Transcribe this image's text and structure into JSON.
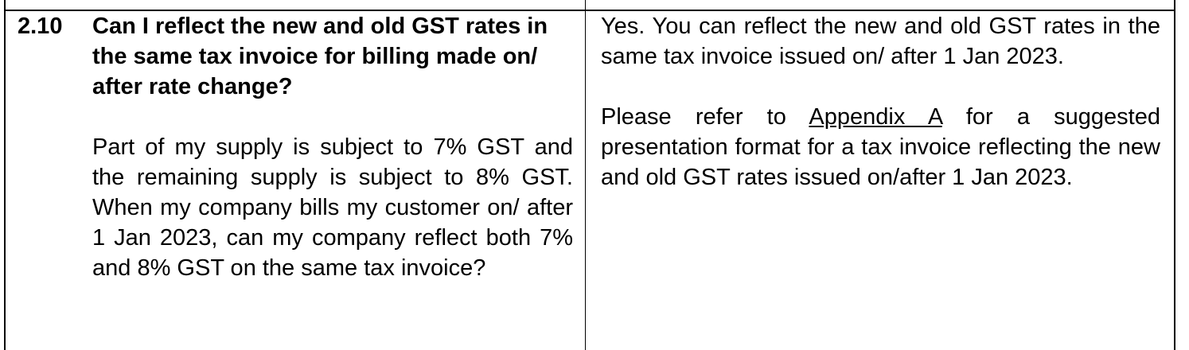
{
  "faq": {
    "row_number": "2.10",
    "question_title": "Can I reflect the new and old GST rates in the same tax invoice for billing made on/ after rate change?",
    "question_detail": "Part of my supply is subject to 7% GST and the remaining supply is subject to 8% GST. When my company bills my customer on/ after 1 Jan 2023, can my company reflect both 7% and 8% GST on the same tax invoice?",
    "answer_paragraph_1": "Yes. You can reflect the new and old GST rates in the same tax invoice issued on/ after 1 Jan 2023.",
    "answer_paragraph_2_before_link": "Please refer to ",
    "answer_link_text": "Appendix A",
    "answer_paragraph_2_after_link": " for a suggested presentation format for a tax invoice reflecting the new and old GST rates issued on/after 1 Jan 2023."
  }
}
